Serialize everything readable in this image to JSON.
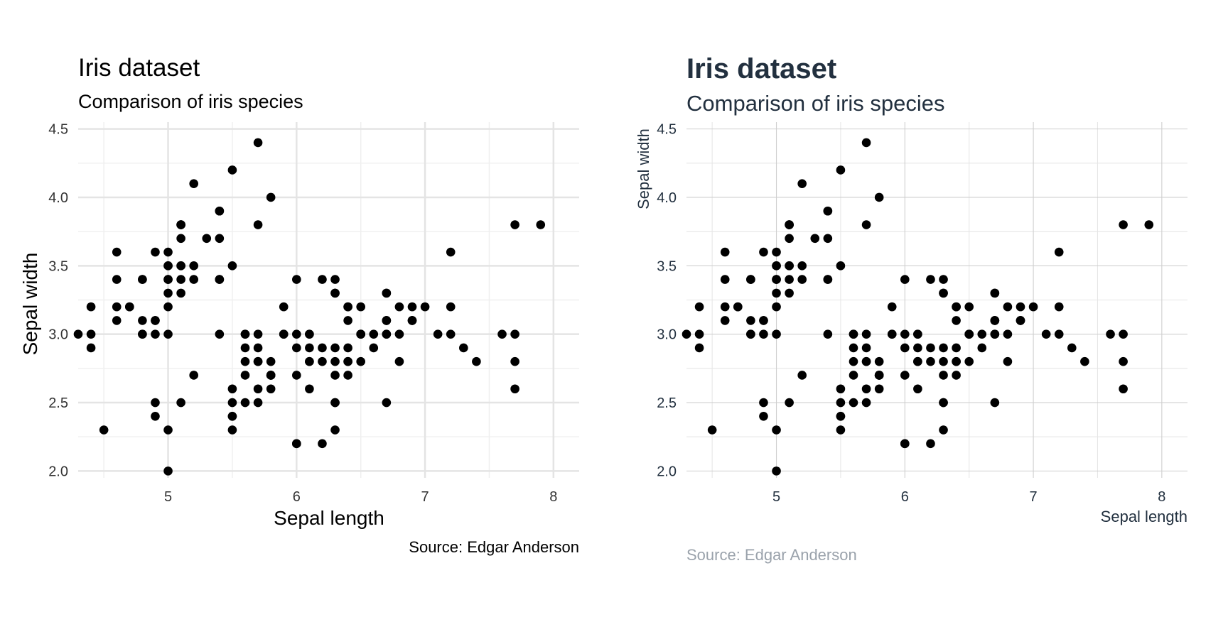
{
  "chart_data": [
    {
      "type": "scatter",
      "theme": "minimal",
      "title": "Iris dataset",
      "subtitle": "Comparison of iris species",
      "caption": "Source: Edgar Anderson",
      "xlabel": "Sepal length",
      "ylabel": "Sepal width",
      "xlim": [
        4.3,
        8.2
      ],
      "ylim": [
        1.95,
        4.55
      ],
      "x_ticks": [
        "5",
        "6",
        "7",
        "8"
      ],
      "y_ticks": [
        "2.0",
        "2.5",
        "3.0",
        "3.5",
        "4.0",
        "4.5"
      ],
      "grid": true,
      "point_color": "#000000",
      "text_color": "#000000",
      "muted_color": "#333333",
      "grid_color": "#e4e4e4",
      "points": [
        [
          5.1,
          3.5
        ],
        [
          4.9,
          3.0
        ],
        [
          4.7,
          3.2
        ],
        [
          4.6,
          3.1
        ],
        [
          5.0,
          3.6
        ],
        [
          5.4,
          3.9
        ],
        [
          4.6,
          3.4
        ],
        [
          5.0,
          3.4
        ],
        [
          4.4,
          2.9
        ],
        [
          4.9,
          3.1
        ],
        [
          5.4,
          3.7
        ],
        [
          4.8,
          3.4
        ],
        [
          4.8,
          3.0
        ],
        [
          4.3,
          3.0
        ],
        [
          5.8,
          4.0
        ],
        [
          5.7,
          4.4
        ],
        [
          5.4,
          3.9
        ],
        [
          5.1,
          3.5
        ],
        [
          5.7,
          3.8
        ],
        [
          5.1,
          3.8
        ],
        [
          5.4,
          3.4
        ],
        [
          5.1,
          3.7
        ],
        [
          4.6,
          3.6
        ],
        [
          5.1,
          3.3
        ],
        [
          4.8,
          3.4
        ],
        [
          5.0,
          3.0
        ],
        [
          5.0,
          3.4
        ],
        [
          5.2,
          3.5
        ],
        [
          5.2,
          3.4
        ],
        [
          4.7,
          3.2
        ],
        [
          4.8,
          3.1
        ],
        [
          5.4,
          3.4
        ],
        [
          5.2,
          4.1
        ],
        [
          5.5,
          4.2
        ],
        [
          4.9,
          3.1
        ],
        [
          5.0,
          3.2
        ],
        [
          5.5,
          3.5
        ],
        [
          4.9,
          3.6
        ],
        [
          4.4,
          3.0
        ],
        [
          5.1,
          3.4
        ],
        [
          5.0,
          3.5
        ],
        [
          4.5,
          2.3
        ],
        [
          4.4,
          3.2
        ],
        [
          5.0,
          3.5
        ],
        [
          5.1,
          3.8
        ],
        [
          4.8,
          3.0
        ],
        [
          5.1,
          3.8
        ],
        [
          4.6,
          3.2
        ],
        [
          5.3,
          3.7
        ],
        [
          5.0,
          3.3
        ],
        [
          7.0,
          3.2
        ],
        [
          6.4,
          3.2
        ],
        [
          6.9,
          3.1
        ],
        [
          5.5,
          2.3
        ],
        [
          6.5,
          2.8
        ],
        [
          5.7,
          2.8
        ],
        [
          6.3,
          3.3
        ],
        [
          4.9,
          2.4
        ],
        [
          6.6,
          2.9
        ],
        [
          5.2,
          2.7
        ],
        [
          5.0,
          2.0
        ],
        [
          5.9,
          3.0
        ],
        [
          6.0,
          2.2
        ],
        [
          6.1,
          2.9
        ],
        [
          5.6,
          2.9
        ],
        [
          6.7,
          3.1
        ],
        [
          5.6,
          3.0
        ],
        [
          5.8,
          2.7
        ],
        [
          6.2,
          2.2
        ],
        [
          5.6,
          2.5
        ],
        [
          5.9,
          3.2
        ],
        [
          6.1,
          2.8
        ],
        [
          6.3,
          2.5
        ],
        [
          6.1,
          2.8
        ],
        [
          6.4,
          2.9
        ],
        [
          6.6,
          3.0
        ],
        [
          6.8,
          2.8
        ],
        [
          6.7,
          3.0
        ],
        [
          6.0,
          2.9
        ],
        [
          5.7,
          2.6
        ],
        [
          5.5,
          2.4
        ],
        [
          5.5,
          2.4
        ],
        [
          5.8,
          2.7
        ],
        [
          6.0,
          2.7
        ],
        [
          5.4,
          3.0
        ],
        [
          6.0,
          3.4
        ],
        [
          6.7,
          3.1
        ],
        [
          6.3,
          2.3
        ],
        [
          5.6,
          3.0
        ],
        [
          5.5,
          2.5
        ],
        [
          5.5,
          2.6
        ],
        [
          6.1,
          3.0
        ],
        [
          5.8,
          2.6
        ],
        [
          5.0,
          2.3
        ],
        [
          5.6,
          2.7
        ],
        [
          5.7,
          3.0
        ],
        [
          5.7,
          2.9
        ],
        [
          6.2,
          2.9
        ],
        [
          5.1,
          2.5
        ],
        [
          5.7,
          2.8
        ],
        [
          6.3,
          3.3
        ],
        [
          5.8,
          2.7
        ],
        [
          7.1,
          3.0
        ],
        [
          6.3,
          2.9
        ],
        [
          6.5,
          3.0
        ],
        [
          7.6,
          3.0
        ],
        [
          4.9,
          2.5
        ],
        [
          7.3,
          2.9
        ],
        [
          6.7,
          2.5
        ],
        [
          7.2,
          3.6
        ],
        [
          6.5,
          3.2
        ],
        [
          6.4,
          2.7
        ],
        [
          6.8,
          3.0
        ],
        [
          5.7,
          2.5
        ],
        [
          5.8,
          2.8
        ],
        [
          6.4,
          3.2
        ],
        [
          6.5,
          3.0
        ],
        [
          7.7,
          3.8
        ],
        [
          7.7,
          2.6
        ],
        [
          6.0,
          2.2
        ],
        [
          6.9,
          3.2
        ],
        [
          5.6,
          2.8
        ],
        [
          7.7,
          2.8
        ],
        [
          6.3,
          2.7
        ],
        [
          6.7,
          3.3
        ],
        [
          7.2,
          3.2
        ],
        [
          6.2,
          2.8
        ],
        [
          6.1,
          3.0
        ],
        [
          6.4,
          2.8
        ],
        [
          7.2,
          3.0
        ],
        [
          7.4,
          2.8
        ],
        [
          7.9,
          3.8
        ],
        [
          6.4,
          2.8
        ],
        [
          6.3,
          2.8
        ],
        [
          6.1,
          2.6
        ],
        [
          7.7,
          3.0
        ],
        [
          6.3,
          3.4
        ],
        [
          6.4,
          3.1
        ],
        [
          6.0,
          3.0
        ],
        [
          6.9,
          3.1
        ],
        [
          6.7,
          3.1
        ],
        [
          6.9,
          3.1
        ],
        [
          5.8,
          2.7
        ],
        [
          6.8,
          3.2
        ],
        [
          6.7,
          3.3
        ],
        [
          6.7,
          3.0
        ],
        [
          6.3,
          2.5
        ],
        [
          6.5,
          3.0
        ],
        [
          6.2,
          3.4
        ],
        [
          5.9,
          3.0
        ]
      ]
    },
    {
      "type": "scatter",
      "theme": "styled",
      "title": "Iris dataset",
      "subtitle": "Comparison of iris species",
      "caption": "Source: Edgar Anderson",
      "xlabel": "Sepal length",
      "ylabel": "Sepal width",
      "xlim": [
        4.3,
        8.2
      ],
      "ylim": [
        1.95,
        4.55
      ],
      "x_ticks": [
        "5",
        "6",
        "7",
        "8"
      ],
      "y_ticks": [
        "2.0",
        "2.5",
        "3.0",
        "3.5",
        "4.0",
        "4.5"
      ],
      "grid": true,
      "point_color": "#000000",
      "text_color": "#22303f",
      "caption_color": "#9aa2ab",
      "grid_color": "#cfcfcf",
      "points": [
        [
          5.1,
          3.5
        ],
        [
          4.9,
          3.0
        ],
        [
          4.7,
          3.2
        ],
        [
          4.6,
          3.1
        ],
        [
          5.0,
          3.6
        ],
        [
          5.4,
          3.9
        ],
        [
          4.6,
          3.4
        ],
        [
          5.0,
          3.4
        ],
        [
          4.4,
          2.9
        ],
        [
          4.9,
          3.1
        ],
        [
          5.4,
          3.7
        ],
        [
          4.8,
          3.4
        ],
        [
          4.8,
          3.0
        ],
        [
          4.3,
          3.0
        ],
        [
          5.8,
          4.0
        ],
        [
          5.7,
          4.4
        ],
        [
          5.4,
          3.9
        ],
        [
          5.1,
          3.5
        ],
        [
          5.7,
          3.8
        ],
        [
          5.1,
          3.8
        ],
        [
          5.4,
          3.4
        ],
        [
          5.1,
          3.7
        ],
        [
          4.6,
          3.6
        ],
        [
          5.1,
          3.3
        ],
        [
          4.8,
          3.4
        ],
        [
          5.0,
          3.0
        ],
        [
          5.0,
          3.4
        ],
        [
          5.2,
          3.5
        ],
        [
          5.2,
          3.4
        ],
        [
          4.7,
          3.2
        ],
        [
          4.8,
          3.1
        ],
        [
          5.4,
          3.4
        ],
        [
          5.2,
          4.1
        ],
        [
          5.5,
          4.2
        ],
        [
          4.9,
          3.1
        ],
        [
          5.0,
          3.2
        ],
        [
          5.5,
          3.5
        ],
        [
          4.9,
          3.6
        ],
        [
          4.4,
          3.0
        ],
        [
          5.1,
          3.4
        ],
        [
          5.0,
          3.5
        ],
        [
          4.5,
          2.3
        ],
        [
          4.4,
          3.2
        ],
        [
          5.0,
          3.5
        ],
        [
          5.1,
          3.8
        ],
        [
          4.8,
          3.0
        ],
        [
          5.1,
          3.8
        ],
        [
          4.6,
          3.2
        ],
        [
          5.3,
          3.7
        ],
        [
          5.0,
          3.3
        ],
        [
          7.0,
          3.2
        ],
        [
          6.4,
          3.2
        ],
        [
          6.9,
          3.1
        ],
        [
          5.5,
          2.3
        ],
        [
          6.5,
          2.8
        ],
        [
          5.7,
          2.8
        ],
        [
          6.3,
          3.3
        ],
        [
          4.9,
          2.4
        ],
        [
          6.6,
          2.9
        ],
        [
          5.2,
          2.7
        ],
        [
          5.0,
          2.0
        ],
        [
          5.9,
          3.0
        ],
        [
          6.0,
          2.2
        ],
        [
          6.1,
          2.9
        ],
        [
          5.6,
          2.9
        ],
        [
          6.7,
          3.1
        ],
        [
          5.6,
          3.0
        ],
        [
          5.8,
          2.7
        ],
        [
          6.2,
          2.2
        ],
        [
          5.6,
          2.5
        ],
        [
          5.9,
          3.2
        ],
        [
          6.1,
          2.8
        ],
        [
          6.3,
          2.5
        ],
        [
          6.1,
          2.8
        ],
        [
          6.4,
          2.9
        ],
        [
          6.6,
          3.0
        ],
        [
          6.8,
          2.8
        ],
        [
          6.7,
          3.0
        ],
        [
          6.0,
          2.9
        ],
        [
          5.7,
          2.6
        ],
        [
          5.5,
          2.4
        ],
        [
          5.5,
          2.4
        ],
        [
          5.8,
          2.7
        ],
        [
          6.0,
          2.7
        ],
        [
          5.4,
          3.0
        ],
        [
          6.0,
          3.4
        ],
        [
          6.7,
          3.1
        ],
        [
          6.3,
          2.3
        ],
        [
          5.6,
          3.0
        ],
        [
          5.5,
          2.5
        ],
        [
          5.5,
          2.6
        ],
        [
          6.1,
          3.0
        ],
        [
          5.8,
          2.6
        ],
        [
          5.0,
          2.3
        ],
        [
          5.6,
          2.7
        ],
        [
          5.7,
          3.0
        ],
        [
          5.7,
          2.9
        ],
        [
          6.2,
          2.9
        ],
        [
          5.1,
          2.5
        ],
        [
          5.7,
          2.8
        ],
        [
          6.3,
          3.3
        ],
        [
          5.8,
          2.7
        ],
        [
          7.1,
          3.0
        ],
        [
          6.3,
          2.9
        ],
        [
          6.5,
          3.0
        ],
        [
          7.6,
          3.0
        ],
        [
          4.9,
          2.5
        ],
        [
          7.3,
          2.9
        ],
        [
          6.7,
          2.5
        ],
        [
          7.2,
          3.6
        ],
        [
          6.5,
          3.2
        ],
        [
          6.4,
          2.7
        ],
        [
          6.8,
          3.0
        ],
        [
          5.7,
          2.5
        ],
        [
          5.8,
          2.8
        ],
        [
          6.4,
          3.2
        ],
        [
          6.5,
          3.0
        ],
        [
          7.7,
          3.8
        ],
        [
          7.7,
          2.6
        ],
        [
          6.0,
          2.2
        ],
        [
          6.9,
          3.2
        ],
        [
          5.6,
          2.8
        ],
        [
          7.7,
          2.8
        ],
        [
          6.3,
          2.7
        ],
        [
          6.7,
          3.3
        ],
        [
          7.2,
          3.2
        ],
        [
          6.2,
          2.8
        ],
        [
          6.1,
          3.0
        ],
        [
          6.4,
          2.8
        ],
        [
          7.2,
          3.0
        ],
        [
          7.4,
          2.8
        ],
        [
          7.9,
          3.8
        ],
        [
          6.4,
          2.8
        ],
        [
          6.3,
          2.8
        ],
        [
          6.1,
          2.6
        ],
        [
          7.7,
          3.0
        ],
        [
          6.3,
          3.4
        ],
        [
          6.4,
          3.1
        ],
        [
          6.0,
          3.0
        ],
        [
          6.9,
          3.1
        ],
        [
          6.7,
          3.1
        ],
        [
          6.9,
          3.1
        ],
        [
          5.8,
          2.7
        ],
        [
          6.8,
          3.2
        ],
        [
          6.7,
          3.3
        ],
        [
          6.7,
          3.0
        ],
        [
          6.3,
          2.5
        ],
        [
          6.5,
          3.0
        ],
        [
          6.2,
          3.4
        ],
        [
          5.9,
          3.0
        ]
      ]
    }
  ]
}
